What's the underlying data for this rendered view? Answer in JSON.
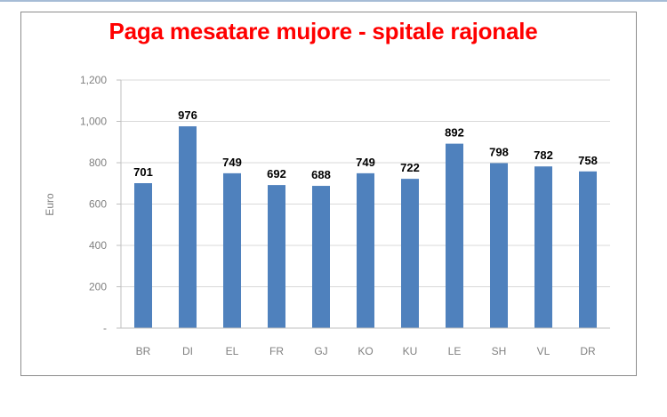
{
  "chart_data": {
    "type": "bar",
    "title": "Paga mesatare mujore - spitale rajonale",
    "xlabel": "",
    "ylabel": "Euro",
    "categories": [
      "BR",
      "DI",
      "EL",
      "FR",
      "GJ",
      "KO",
      "KU",
      "LE",
      "SH",
      "VL",
      "DR"
    ],
    "values": [
      701,
      976,
      749,
      692,
      688,
      749,
      722,
      892,
      798,
      782,
      758
    ],
    "ylim": [
      0,
      1200
    ],
    "yticks": [
      0,
      200,
      400,
      600,
      800,
      1000,
      1200
    ],
    "ytick_labels": [
      "-",
      "200",
      "400",
      "600",
      "800",
      "1,000",
      "1,200"
    ],
    "grid": true,
    "legend": "none",
    "bar_color": "#4f81bd",
    "title_color": "#ff0000"
  }
}
